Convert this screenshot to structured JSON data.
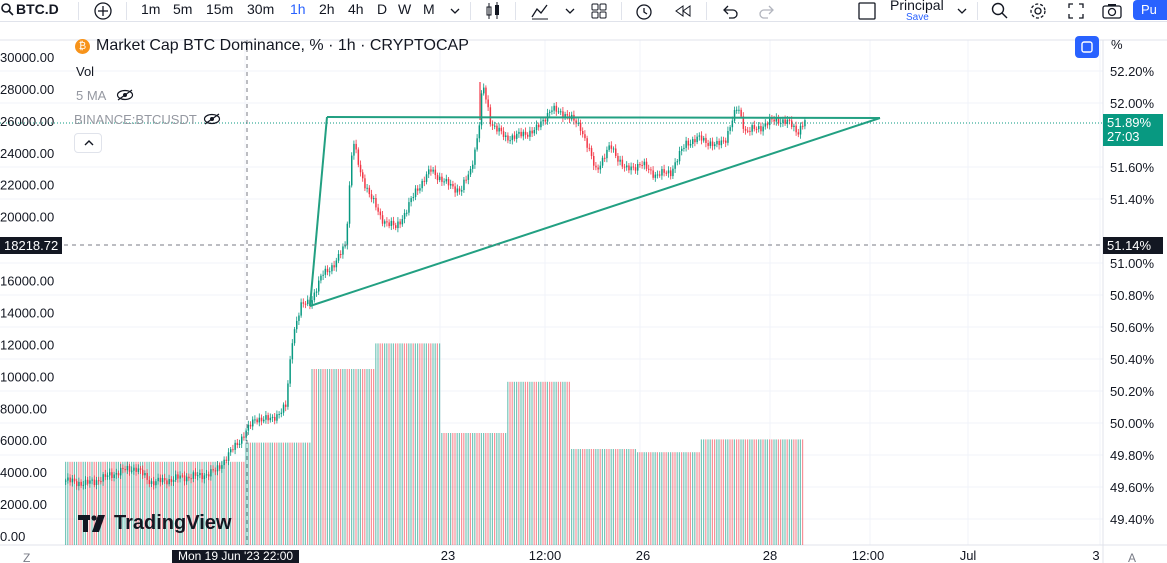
{
  "toolbar": {
    "symbol": "BTC.D",
    "intervals": [
      "1m",
      "5m",
      "15m",
      "30m",
      "1h",
      "2h",
      "4h",
      "D",
      "W",
      "M"
    ],
    "active_interval": "1h",
    "layout_name": "Principal",
    "save_label": "Save",
    "publish_label": "Pu"
  },
  "legend": {
    "title": "Market Cap BTC Dominance, % · 1h · CRYPTOCAP",
    "vol": "Vol",
    "ma": "5 MA",
    "compare": "BINANCE:BTCUSDT"
  },
  "axes": {
    "percent_toggle": "%",
    "current_label": "51.89%",
    "countdown": "27:03",
    "cross_right": "51.14%",
    "cross_left": "18218.72",
    "cross_time": "Mon 19 Jun '23   22:00",
    "bottom_left": "Z",
    "bottom_right": "A"
  },
  "watermark": "TradingView",
  "colors": {
    "up": "#089981",
    "down": "#f23645",
    "trendline": "#22a082",
    "accent": "#2962ff"
  },
  "chart_data": {
    "type": "candlestick",
    "title": "Market Cap BTC Dominance, % · 1h · CRYPTOCAP",
    "right_axis": {
      "ticks": [
        "52.20%",
        "52.00%",
        "51.60%",
        "51.40%",
        "51.00%",
        "50.80%",
        "50.60%",
        "50.40%",
        "50.20%",
        "50.00%",
        "49.80%",
        "49.60%",
        "49.40%"
      ],
      "range": [
        49.35,
        52.27
      ]
    },
    "left_axis": {
      "ticks": [
        "30000.00",
        "28000.00",
        "26000.00",
        "24000.00",
        "22000.00",
        "20000.00",
        "16000.00",
        "14000.00",
        "12000.00",
        "10000.00",
        "8000.00",
        "6000.00",
        "4000.00",
        "2000.00",
        "0.00"
      ],
      "range": [
        0,
        30000
      ]
    },
    "time_axis": {
      "ticks": [
        "23",
        "12:00",
        "26",
        "28",
        "12:00",
        "Jul",
        "3"
      ]
    },
    "trendlines": [
      {
        "label": "triangle-upper",
        "from": [
          327,
          117
        ],
        "to": [
          880,
          118
        ]
      },
      {
        "label": "triangle-lower",
        "from": [
          310,
          306
        ],
        "to": [
          880,
          118
        ]
      },
      {
        "label": "triangle-left",
        "from": [
          310,
          306
        ],
        "to": [
          327,
          117
        ]
      }
    ],
    "price_path": [
      [
        65,
        49.64
      ],
      [
        85,
        49.62
      ],
      [
        100,
        49.65
      ],
      [
        120,
        49.7
      ],
      [
        135,
        49.72
      ],
      [
        150,
        49.63
      ],
      [
        165,
        49.64
      ],
      [
        180,
        49.66
      ],
      [
        200,
        49.67
      ],
      [
        215,
        49.7
      ],
      [
        225,
        49.78
      ],
      [
        240,
        49.9
      ],
      [
        255,
        50.03
      ],
      [
        270,
        50.02
      ],
      [
        285,
        50.1
      ],
      [
        292,
        50.55
      ],
      [
        300,
        50.73
      ],
      [
        310,
        50.76
      ],
      [
        322,
        50.93
      ],
      [
        335,
        51.0
      ],
      [
        345,
        51.12
      ],
      [
        352,
        51.78
      ],
      [
        360,
        51.55
      ],
      [
        370,
        51.42
      ],
      [
        380,
        51.28
      ],
      [
        395,
        51.22
      ],
      [
        405,
        51.32
      ],
      [
        415,
        51.45
      ],
      [
        430,
        51.58
      ],
      [
        445,
        51.5
      ],
      [
        460,
        51.45
      ],
      [
        470,
        51.58
      ],
      [
        478,
        51.83
      ],
      [
        482,
        52.12
      ],
      [
        490,
        51.88
      ],
      [
        505,
        51.78
      ],
      [
        520,
        51.8
      ],
      [
        535,
        51.83
      ],
      [
        550,
        51.96
      ],
      [
        565,
        51.93
      ],
      [
        580,
        51.85
      ],
      [
        595,
        51.58
      ],
      [
        610,
        51.73
      ],
      [
        625,
        51.58
      ],
      [
        640,
        51.62
      ],
      [
        655,
        51.55
      ],
      [
        670,
        51.57
      ],
      [
        685,
        51.75
      ],
      [
        700,
        51.78
      ],
      [
        715,
        51.73
      ],
      [
        725,
        51.78
      ],
      [
        737,
        51.98
      ],
      [
        745,
        51.82
      ],
      [
        760,
        51.85
      ],
      [
        775,
        51.9
      ],
      [
        790,
        51.87
      ],
      [
        797,
        51.82
      ],
      [
        805,
        51.89
      ]
    ],
    "volume_levels": [
      [
        65,
        0.26
      ],
      [
        245,
        0.32
      ],
      [
        310,
        0.55
      ],
      [
        375,
        0.63
      ],
      [
        440,
        0.35
      ],
      [
        505,
        0.51
      ],
      [
        570,
        0.3
      ],
      [
        635,
        0.29
      ],
      [
        700,
        0.33
      ],
      [
        805,
        0.28
      ]
    ]
  }
}
